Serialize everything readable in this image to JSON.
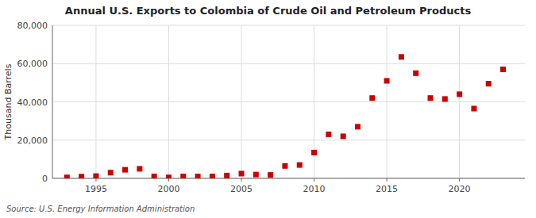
{
  "chart_data": {
    "type": "scatter",
    "title": "Annual U.S. Exports to Colombia of Crude Oil and Petroleum Products",
    "ylabel": "Thousand Barrels",
    "annotations": [
      "Source: U.S. Energy Information Administration"
    ],
    "x": [
      1993,
      1994,
      1995,
      1996,
      1997,
      1998,
      1999,
      2000,
      2001,
      2002,
      2003,
      2004,
      2005,
      2006,
      2007,
      2008,
      2009,
      2010,
      2011,
      2012,
      2013,
      2014,
      2015,
      2016,
      2017,
      2018,
      2019,
      2020,
      2021,
      2022,
      2023
    ],
    "values": [
      500,
      900,
      1200,
      3000,
      4500,
      5000,
      1000,
      500,
      1000,
      1000,
      1000,
      1500,
      2500,
      2000,
      1800,
      6500,
      7000,
      13500,
      23000,
      22000,
      27000,
      42000,
      51000,
      63500,
      55000,
      42000,
      41500,
      44000,
      36500,
      49500,
      57000
    ],
    "color": "#cc0000",
    "marker": "square",
    "xlim": [
      1992.0,
      2024.5
    ],
    "xticks": [
      1995,
      2000,
      2005,
      2010,
      2015,
      2020
    ],
    "ylim": [
      0,
      80000
    ],
    "yticks": [
      0,
      {
        "value": 20000,
        "label": "20,000"
      },
      {
        "value": 40000,
        "label": "40,000"
      },
      {
        "value": 60000,
        "label": "60,000"
      },
      {
        "value": 80000,
        "label": "80,000"
      }
    ],
    "grid": true
  }
}
